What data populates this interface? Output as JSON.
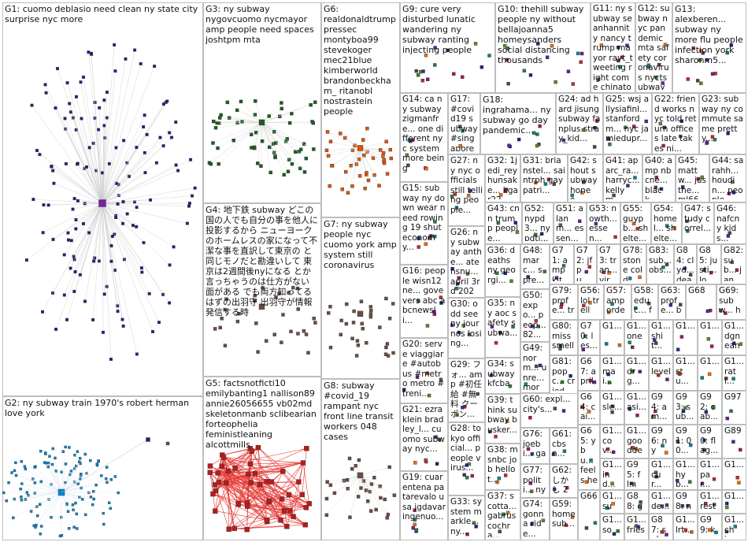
{
  "groups": [
    "G1: cuomo deblasio need clean ny state city surprise nyc more",
    "G2: ny subway train 1970's robert herman love york",
    "G3: ny subway nygovcuomo nycmayor amp people need spaces joshtpm mta",
    "G4: 地下鉄 subway どこの国の人でも自分の事を他人に投影するから ニューヨークのホームレスの家になって不潔な事を直訳して東京の と同じモノだと勘違いして 東京は2週間後nyになる とか言っちゃうのは仕方がない 面がある でも両方知ってるはずの出羽守 出羽守が情報発信する時",
    "G5: factsnotficti10 emilybanting1 nallison89 annie26056655 vb02md skeletonmanb sclibearian forteophelia feministleaning alcottmills",
    "G6: realdonaldtrump pressec montyboa99 stevekoger mec21blue kimberworld brandonbeckham_ ritanobl nostrastein people",
    "G7: ny subway people nyc cuomo york amp system still coronavirus",
    "G8: subway #covid_19 rampant nyc front line transit workers 048 cases",
    "G9: cure very disturbed lunatic wandering ny subway ranting injecting people",
    "G10: thehill subway people ny without bellajoanna5 homeysanders social distancing thousands",
    "G11: ny subway seanhannity nancy trump mayor rayt_tweeting right come chinatown",
    "G12: subway nyc pandemic mta safety coronavirus nyctsubway more system transit",
    "G13: alexberen... subway ny more flu people infection york sharonm5...",
    "G14: ca ny subway zigmanfre... one different nyc system more being",
    "G17: #covid19 subway #singapore workers...",
    "G18: ingrahama... ny subway go day pandemic...",
    "G24: ad hard jisung subway fanplus stray_kid...",
    "G25: wsj allysiafinl... stanfordm... nyc jamiedupr...",
    "G22: friend works nyc told return offices late takes nj...",
    "G23: subway ny commute same pretty...",
    "G15: subway ny down wear need rowing 19 shut economy...",
    "G27: ny nyc officials still telling people...",
    "G32: 1jedi_rey hunsake... kgar22...",
    "G31: brianstel... saintrph gaypatri...",
    "G42: shout subway honeo...",
    "G41: ap arc_ra... harryc... kellym...",
    "G40: amp nbcne... black...",
    "G45: mattw... justhe... ml66s...",
    "G44: sarahh... houdin... people...",
    "G43: cnn trump people...",
    "G52: nypd3... nypdti... people...",
    "G51: alanm... essen...",
    "G53: nowth... essen...",
    "G55: guypb... shelte...",
    "G54: homel... shelte...",
    "G47: study correl...",
    "G46: nafcny kids...",
    "G26: ny subway anthe... atensnu... april 3rd 2020...",
    "G16: people wisn12ne... govevers abc abcnewsli...",
    "G36: deaths ny georgi...",
    "G48: marc... spre... drivi...",
    "G71: amp kit...",
    "G72: jfpu... nois...",
    "G73: tran... viru...",
    "G78: stone cold...",
    "G83: sub... obs...",
    "G84: clyd... deat...",
    "G85: justi... low...",
    "G82: sub... janu...",
    "G30: odd see ny journos losing...",
    "G35: ny aoc safety subwa...",
    "G50: expo... peop... 82...",
    "G79: profe... trans...",
    "G56: lol trells...",
    "G57: amp order...",
    "G58: educ... fact...",
    "G63: profe... buski...",
    "G68",
    "G69: subw... hom...",
    "G20: serve viaggiare #autobus #metro metro #treni...",
    "G80: miss smell",
    "G70: les... nee... the...",
    "G67: april 15 dec...",
    "G64: cai... ang... bod...",
    "G65: ybu... feels hear",
    "G66",
    "G29: フォ... amp #初任給 #無料 クーポン...",
    "G28: tokyo official... people virus...",
    "G33: system markle... ny...",
    "G21: ezraklein bradley_l... cuomo subway nyc...",
    "G19: cuarentena patarevalo usa jgdavar ingenuo...",
    "G34: subway kfcbar... reedy3...",
    "G39: think subway busker...",
    "G38: msnbc job hellot...",
    "G37: scotta... gabrus cochra...",
    "G49: norm... unre... more...",
    "G60: expl... city's...",
    "G76: joebi... ga_p...",
    "G77: politi... nyc...",
    "G74: gonna ride...",
    "G81: popc... cried...",
    "G61: cbsn... more",
    "G62: しかし 20...",
    "G59: home sub...",
    "G1...",
    "G1... one",
    "G1... shit...",
    "G1...",
    "G1...",
    "G1... dgneani...",
    "G1... mai...",
    "G1... drg...",
    "G1... level",
    "G1... stu...",
    "G1...",
    "G1... rati...",
    "G1... sle...",
    "G1... asi...",
    "G94: am...",
    "G93: sub...",
    "G92: cab...",
    "G97",
    "G1... cov...",
    "G1... gooddet...",
    "G96: ny",
    "G91: 00...",
    "G90: flag...",
    "G89",
    "G1... ind...",
    "G95: fl...",
    "G1... cur...",
    "G1... hyp...",
    "G1... par...",
    "G1...",
    "G1... sub...",
    "G88: ge...",
    "G1... de...",
    "G98: ny...",
    "G1... rest",
    "G1...",
    "G1... sou...",
    "G1... fries",
    "G87: sub...",
    "G1... lrt...",
    "G99: kea...",
    "G1... chi..."
  ]
}
